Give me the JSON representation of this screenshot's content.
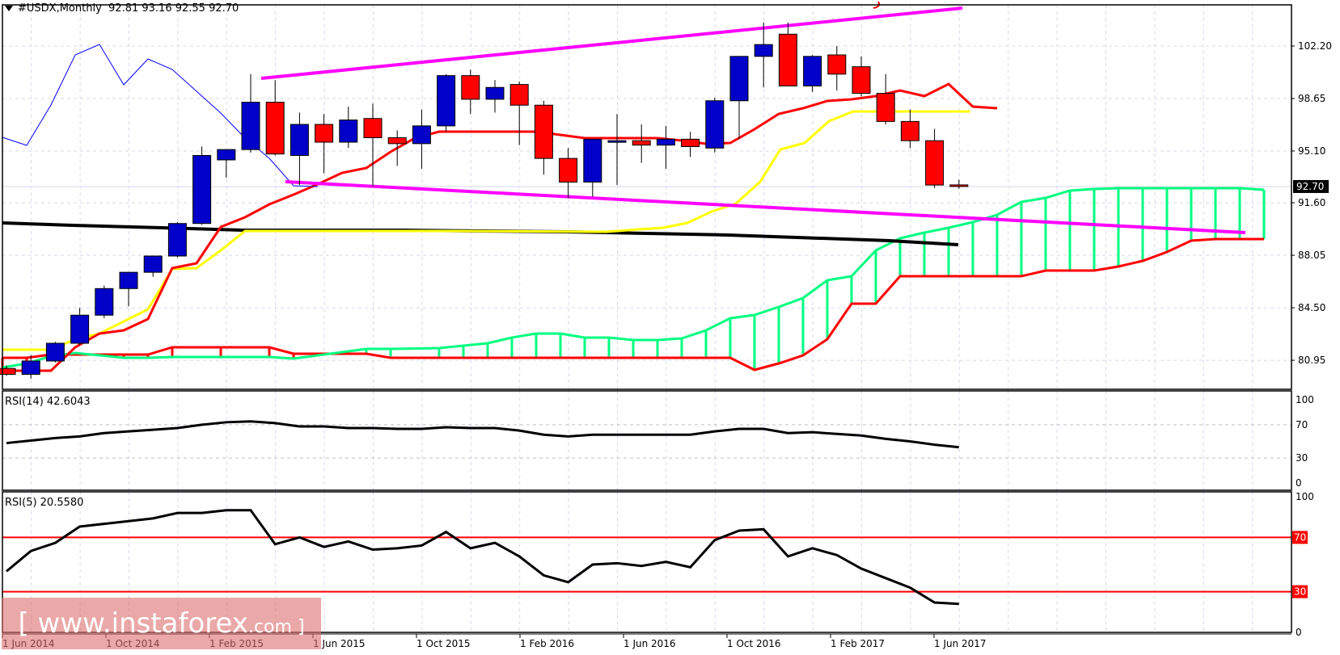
{
  "header": {
    "symbol": "#USDX,Monthly",
    "ohlc": "92.81 93.16 92.55 92.70"
  },
  "indicators": {
    "rsi14_label": "RSI(14) 42.6043",
    "rsi5_label": "RSI(5) 20.5580"
  },
  "watermark": {
    "main": "[ www.instaforex",
    "suffix": ".com ]"
  },
  "price_axis": {
    "ticks": [
      "102.20",
      "98.65",
      "95.10",
      "91.60",
      "88.05",
      "84.50",
      "80.95"
    ],
    "current_price": "92.70"
  },
  "rsi14_axis": {
    "ticks": [
      "100",
      "70",
      "30",
      "0"
    ]
  },
  "rsi5_axis": {
    "ticks": [
      "100",
      "70",
      "30",
      "0"
    ]
  },
  "time_axis": {
    "ticks": [
      "1 Jun 2014",
      "1 Oct 2014",
      "1 Feb 2015",
      "1 Jun 2015",
      "1 Oct 2015",
      "1 Feb 2016",
      "1 Jun 2016",
      "1 Oct 2016",
      "1 Feb 2017",
      "1 Jun 2017"
    ]
  },
  "colors": {
    "bull": "#0000c8",
    "bear": "#ff0000",
    "tenkan": "#ff0000",
    "kijun": "#ffff00",
    "chikou": "#0000ff",
    "senkou_a": "#00ff80",
    "senkou_b": "#ff0000",
    "trendline": "#ff00ff",
    "ma": "#000000",
    "rsi_level": "#ff0000"
  },
  "chart_data": {
    "type": "candlestick",
    "title": "#USDX,Monthly 92.81 93.16 92.55 92.70",
    "categories": [
      "May 2014",
      "Jun 2014",
      "Jul 2014",
      "Aug 2014",
      "Sep 2014",
      "Oct 2014",
      "Nov 2014",
      "Dec 2014",
      "Jan 2015",
      "Feb 2015",
      "Mar 2015",
      "Apr 2015",
      "May 2015",
      "Jun 2015",
      "Jul 2015",
      "Aug 2015",
      "Sep 2015",
      "Oct 2015",
      "Nov 2015",
      "Dec 2015",
      "Jan 2016",
      "Feb 2016",
      "Mar 2016",
      "Apr 2016",
      "May 2016",
      "Jun 2016",
      "Jul 2016",
      "Aug 2016",
      "Sep 2016",
      "Oct 2016",
      "Nov 2016",
      "Dec 2016",
      "Jan 2017",
      "Feb 2017",
      "Mar 2017",
      "Apr 2017",
      "May 2017",
      "Jun 2017",
      "Jul 2017",
      "Aug 2017"
    ],
    "ohlc": [
      [
        80.4,
        80.6,
        79.9,
        80.0
      ],
      [
        80.0,
        81.3,
        79.7,
        80.9
      ],
      [
        80.9,
        82.2,
        80.8,
        82.1
      ],
      [
        82.1,
        84.5,
        82.0,
        84.0
      ],
      [
        84.0,
        86.0,
        83.8,
        85.8
      ],
      [
        85.8,
        86.3,
        84.6,
        86.9
      ],
      [
        86.9,
        87.6,
        86.6,
        88.0
      ],
      [
        88.0,
        90.3,
        87.9,
        90.2
      ],
      [
        90.2,
        95.4,
        90.1,
        94.8
      ],
      [
        94.5,
        95.1,
        93.3,
        95.2
      ],
      [
        95.2,
        100.3,
        95.0,
        98.4
      ],
      [
        98.4,
        99.9,
        94.8,
        94.9
      ],
      [
        94.8,
        97.7,
        92.8,
        96.9
      ],
      [
        96.9,
        97.6,
        93.6,
        95.7
      ],
      [
        95.7,
        98.1,
        95.3,
        97.2
      ],
      [
        97.3,
        98.3,
        92.7,
        96.0
      ],
      [
        96.0,
        96.5,
        94.1,
        95.6
      ],
      [
        95.6,
        97.9,
        93.9,
        96.8
      ],
      [
        96.8,
        100.3,
        96.4,
        100.2
      ],
      [
        100.2,
        100.6,
        97.6,
        98.6
      ],
      [
        98.6,
        99.9,
        97.7,
        99.4
      ],
      [
        99.6,
        99.8,
        95.5,
        98.2
      ],
      [
        98.2,
        98.5,
        93.5,
        94.6
      ],
      [
        94.6,
        95.3,
        91.9,
        93.0
      ],
      [
        93.0,
        95.9,
        92.0,
        95.9
      ],
      [
        95.8,
        97.6,
        92.8,
        95.8
      ],
      [
        95.8,
        96.9,
        94.3,
        95.5
      ],
      [
        95.5,
        96.8,
        93.9,
        95.9
      ],
      [
        95.9,
        96.4,
        94.7,
        95.4
      ],
      [
        95.3,
        98.7,
        95.0,
        98.5
      ],
      [
        98.5,
        101.4,
        95.9,
        101.5
      ],
      [
        101.5,
        103.8,
        99.4,
        102.3
      ],
      [
        103.0,
        103.8,
        99.5,
        99.5
      ],
      [
        99.5,
        101.6,
        99.1,
        101.5
      ],
      [
        101.6,
        102.2,
        99.2,
        100.3
      ],
      [
        100.8,
        101.5,
        98.8,
        99.0
      ],
      [
        99.0,
        100.3,
        96.9,
        97.1
      ],
      [
        97.1,
        97.9,
        95.3,
        95.8
      ],
      [
        95.8,
        96.6,
        92.6,
        92.8
      ],
      [
        92.81,
        93.16,
        92.55,
        92.7
      ]
    ],
    "rsi14": [
      48,
      51,
      54,
      56,
      60,
      62,
      64,
      66,
      70,
      73,
      74,
      72,
      68,
      68,
      66,
      66,
      65,
      65,
      67,
      66,
      66,
      63,
      58,
      56,
      58,
      58,
      58,
      58,
      58,
      62,
      65,
      65,
      60,
      61,
      59,
      57,
      53,
      50,
      46,
      43
    ],
    "rsi5": [
      45,
      60,
      66,
      78,
      80,
      82,
      84,
      88,
      88,
      90,
      90,
      65,
      70,
      63,
      67,
      61,
      62,
      64,
      74,
      62,
      66,
      56,
      42,
      37,
      50,
      51,
      49,
      52,
      48,
      68,
      75,
      76,
      56,
      62,
      57,
      47,
      40,
      33,
      22,
      21
    ],
    "rsi_levels": [
      70,
      30
    ],
    "ylim": [
      79.5,
      105.0
    ],
    "xlabel": "",
    "ylabel": "",
    "grid": true,
    "annotations": [
      "upper magenta trendline",
      "lower magenta trendline",
      "black long-term MA",
      "Ichimoku cloud"
    ]
  }
}
